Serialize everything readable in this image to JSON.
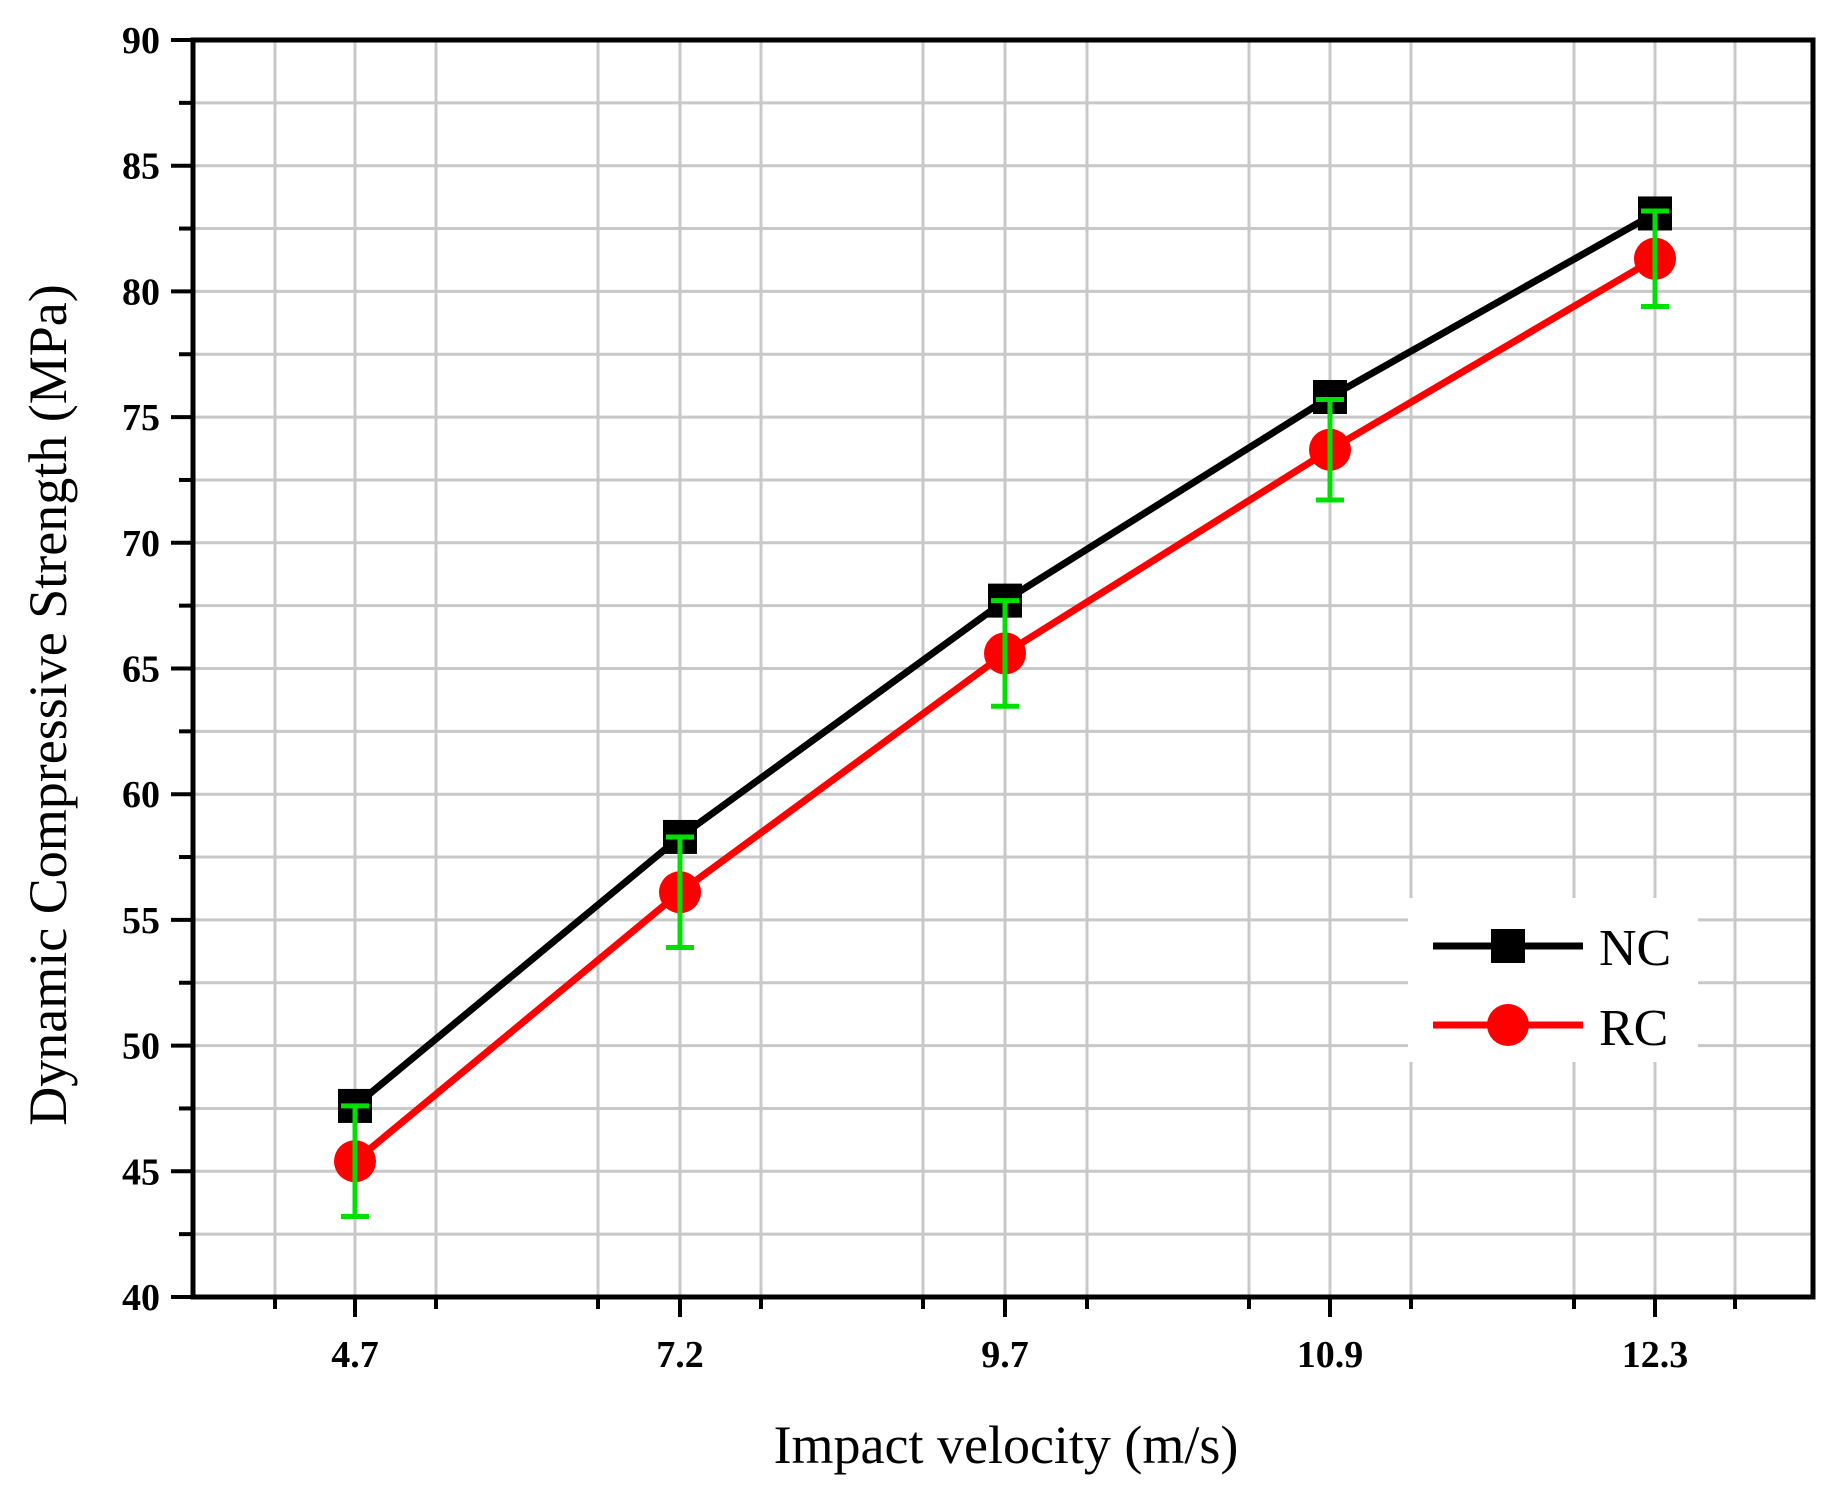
{
  "chart_data": {
    "type": "line",
    "title": "",
    "xlabel": "Impact velocity (m/s)",
    "ylabel": "Dynamic Compressive Strength (MPa)",
    "categories": [
      "4.7",
      "7.2",
      "9.7",
      "10.9",
      "12.3"
    ],
    "ylim": [
      40,
      90
    ],
    "yticks": [
      "40",
      "45",
      "50",
      "55",
      "60",
      "65",
      "70",
      "75",
      "80",
      "85",
      "90"
    ],
    "grid": true,
    "legend_position": "lower-right",
    "series": [
      {
        "name": "NC",
        "color": "#000000",
        "marker": "square",
        "values": [
          47.6,
          58.3,
          67.7,
          75.8,
          83.1
        ],
        "error": [
          0,
          0,
          0,
          0,
          0
        ]
      },
      {
        "name": "RC",
        "color": "#ff0000",
        "marker": "circle",
        "values": [
          45.4,
          56.1,
          65.6,
          73.7,
          81.3
        ],
        "error": [
          2.2,
          2.2,
          2.1,
          2.0,
          1.9
        ]
      }
    ],
    "errorbar_color": "#00e000"
  }
}
